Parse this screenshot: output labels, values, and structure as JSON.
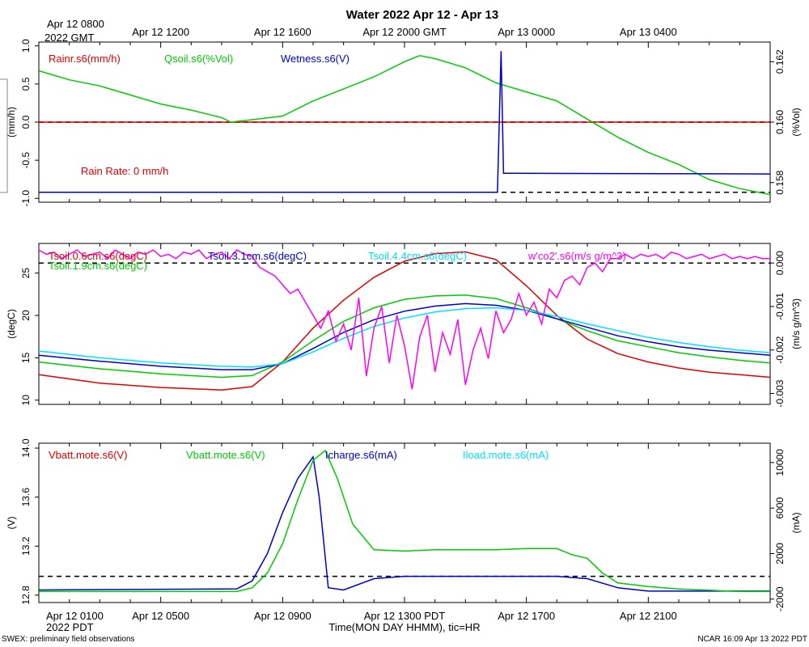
{
  "title": "Water 2022 Apr 12 - Apr 13",
  "top_axis": {
    "start_label": [
      "Apr 12 0800",
      "2022 GMT"
    ],
    "ticks": [
      {
        "label": "Apr 12 1200",
        "hour": 4
      },
      {
        "label": "Apr 12 1600",
        "hour": 8
      },
      {
        "label": "Apr 12 2000 GMT",
        "hour": 12
      },
      {
        "label": "Apr 13 0000",
        "hour": 16
      },
      {
        "label": "Apr 13 0400",
        "hour": 20
      }
    ]
  },
  "bottom_axis": {
    "start_label": [
      "Apr 12 0100",
      "2022 PDT"
    ],
    "ticks": [
      {
        "label": "Apr 12 0500",
        "hour": 4
      },
      {
        "label": "Apr 12 0900",
        "hour": 8
      },
      {
        "label": "Apr 12 1300 PDT",
        "hour": 12
      },
      {
        "label": "Apr 12 1700",
        "hour": 16
      },
      {
        "label": "Apr 12 2100",
        "hour": 20
      }
    ],
    "xlabel": "Time(MON DAY HHMM), tic=HR",
    "hours": 24
  },
  "footer": {
    "left": "SWEX: preliminary field observations",
    "right": "NCAR 16:09 Apr 13 2022 PDT"
  },
  "colors": {
    "red": "#e00000",
    "green": "#00cc00",
    "blue": "#0000cc",
    "cyan": "#00e0ff",
    "magenta": "#ff00ff",
    "black": "#000000"
  },
  "chart_data": [
    {
      "type": "line",
      "panel": "water",
      "left_axis": {
        "label": "(mm/h)",
        "ylim": [
          -1.05,
          1.05
        ],
        "ticks": [
          "1.0",
          "0.5",
          "0.0",
          "-0.5",
          "-1.0"
        ],
        "tick_values": [
          1.0,
          0.5,
          0.0,
          -0.5,
          -1.0
        ]
      },
      "right_axis": {
        "label": "(%Vol)",
        "ylim": [
          0.15735,
          0.16265
        ],
        "ticks": [
          "0.162",
          "0.160",
          "0.158"
        ],
        "tick_values": [
          0.162,
          0.16,
          0.158
        ]
      },
      "legend": [
        "Rainr.s6(mm/h)",
        "Qsoil.s6(%Vol)",
        "Wetness.s6(V)"
      ],
      "annotation": "Rain Rate: 0 mm/h",
      "dashed_lines": [
        {
          "axis": "left",
          "value": 0.0,
          "color": "red"
        },
        {
          "axis": "left",
          "value": 0.0,
          "color": "black"
        },
        {
          "axis": "left",
          "value": -0.92,
          "color": "black"
        }
      ],
      "series": [
        {
          "name": "Rainr.s6(mm/h)",
          "color": "red",
          "axis": "left",
          "x": [
            0,
            24
          ],
          "y": [
            0,
            0
          ]
        },
        {
          "name": "Qsoil.s6(%Vol)",
          "color": "green",
          "axis": "right",
          "x": [
            0,
            1,
            2,
            3,
            4,
            5,
            6,
            6.3,
            7,
            8,
            9,
            10,
            11,
            12,
            12.5,
            13,
            14,
            15,
            16,
            17,
            18,
            19,
            20,
            21,
            22,
            23,
            24
          ],
          "y": [
            0.1617,
            0.1614,
            0.1612,
            0.1609,
            0.1606,
            0.1604,
            0.16015,
            0.16,
            0.16008,
            0.1602,
            0.1607,
            0.1611,
            0.1615,
            0.162,
            0.1622,
            0.1621,
            0.1618,
            0.1613,
            0.161,
            0.1607,
            0.1601,
            0.1595,
            0.159,
            0.1586,
            0.1581,
            0.1578,
            0.1576
          ]
        },
        {
          "name": "Wetness.s6(V)",
          "color": "blue",
          "axis": "left",
          "x": [
            0,
            15.05,
            15.17,
            15.25,
            24
          ],
          "y": [
            -0.92,
            -0.92,
            0.93,
            -0.67,
            -0.68
          ]
        }
      ]
    },
    {
      "type": "line",
      "panel": "temperature",
      "left_axis": {
        "label": "(degC)",
        "ylim": [
          9.5,
          28.5
        ],
        "ticks": [
          "25",
          "20",
          "15",
          "10"
        ],
        "tick_values": [
          25,
          20,
          15,
          10
        ]
      },
      "right_axis": {
        "label": "(m/s g/m^3)",
        "ylim": [
          -0.00325,
          0.00045
        ],
        "ticks": [
          "0.000",
          "-0.001",
          "-0.002",
          "-0.003"
        ],
        "tick_values": [
          0.0,
          -0.001,
          -0.002,
          -0.003
        ]
      },
      "legend": [
        "Tsoil.0.6cm.s6(degC)",
        "Tsoil.1.9cm.s6(degC)",
        "Tsoil.3.1cm.s6(degC)",
        "Tsoil.4.4cm.s6(degC)",
        "w'co2'.s6(m/s g/m^3)"
      ],
      "dashed_lines": [
        {
          "axis": "right",
          "value": 0.0,
          "color": "black"
        }
      ],
      "series": [
        {
          "name": "Tsoil.0.6cm.s6(degC)",
          "color": "red",
          "axis": "left",
          "x": [
            0,
            2,
            4,
            6,
            7,
            8,
            9,
            10,
            11,
            12,
            13,
            14,
            15,
            16,
            17,
            18,
            19,
            20,
            21,
            22,
            23,
            24
          ],
          "y": [
            13,
            12,
            11.5,
            11.2,
            11.6,
            14.5,
            18.5,
            21.8,
            24.5,
            26.4,
            27.3,
            27.5,
            26.6,
            23.5,
            20,
            17.2,
            15.5,
            14.5,
            13.8,
            13.3,
            13,
            12.7
          ]
        },
        {
          "name": "Tsoil.1.9cm.s6(degC)",
          "color": "green",
          "axis": "left",
          "x": [
            0,
            2,
            4,
            6,
            7,
            8,
            9,
            10,
            11,
            12,
            13,
            14,
            15,
            16,
            17,
            18,
            19,
            20,
            21,
            22,
            23,
            24
          ],
          "y": [
            14.5,
            13.7,
            13.1,
            12.7,
            12.9,
            14.5,
            17,
            19.3,
            20.9,
            21.9,
            22.3,
            22.4,
            22,
            20.9,
            19.6,
            18.2,
            17,
            16.3,
            15.6,
            15.1,
            14.7,
            14.4
          ]
        },
        {
          "name": "Tsoil.3.1cm.s6(degC)",
          "color": "blue",
          "axis": "left",
          "x": [
            0,
            2,
            4,
            6,
            7,
            8,
            9,
            10,
            11,
            12,
            13,
            14,
            15,
            16,
            17,
            18,
            19,
            20,
            21,
            22,
            23,
            24
          ],
          "y": [
            15.3,
            14.6,
            14,
            13.6,
            13.6,
            14.3,
            16.1,
            18,
            19.5,
            20.5,
            21.1,
            21.4,
            21.2,
            20.6,
            19.6,
            18.6,
            17.6,
            16.9,
            16.3,
            15.9,
            15.6,
            15.3
          ]
        },
        {
          "name": "Tsoil.4.4cm.s6(degC)",
          "color": "cyan",
          "axis": "left",
          "x": [
            0,
            2,
            4,
            6,
            7,
            8,
            9,
            10,
            11,
            12,
            13,
            14,
            15,
            16,
            17,
            18,
            19,
            20,
            21,
            22,
            23,
            24
          ],
          "y": [
            15.8,
            15,
            14.4,
            14,
            13.9,
            14.3,
            15.7,
            17.3,
            18.7,
            19.7,
            20.4,
            20.8,
            20.9,
            20.6,
            19.9,
            19,
            18.2,
            17.4,
            16.8,
            16.3,
            15.9,
            15.6
          ]
        },
        {
          "name": "w'co2'.s6(m/s g/m^3)",
          "color": "magenta",
          "axis": "right",
          "x": [
            0,
            0.25,
            0.5,
            0.75,
            1,
            1.25,
            1.5,
            1.75,
            2,
            2.25,
            2.5,
            2.75,
            3,
            3.25,
            3.5,
            3.75,
            4,
            4.25,
            4.5,
            4.75,
            5,
            5.25,
            5.5,
            5.75,
            6,
            6.25,
            6.5,
            6.75,
            7,
            7.25,
            7.5,
            7.75,
            8,
            8.25,
            8.5,
            8.75,
            9,
            9.25,
            9.5,
            9.75,
            10,
            10.25,
            10.5,
            10.75,
            11,
            11.25,
            11.5,
            11.75,
            12,
            12.25,
            12.5,
            12.75,
            13,
            13.25,
            13.5,
            13.75,
            14,
            14.25,
            14.5,
            14.75,
            15,
            15.25,
            15.5,
            15.75,
            16,
            16.25,
            16.5,
            16.75,
            17,
            17.25,
            17.5,
            17.75,
            18,
            18.25,
            18.5,
            18.75,
            19,
            19.25,
            19.5,
            19.75,
            20,
            20.25,
            20.5,
            20.75,
            21,
            21.25,
            21.5,
            21.75,
            22,
            22.25,
            22.5,
            22.75,
            23,
            23.25,
            23.5,
            23.75,
            24
          ],
          "y": [
            0.0003,
            0.0002,
            0.00025,
            0.0001,
            0.0002,
            0.0003,
            0.00015,
            0.0002,
            0.00025,
            0.0001,
            0.0003,
            0.0002,
            0.0001,
            0.00025,
            0.0002,
            0.0003,
            0.00015,
            0.0002,
            0.0001,
            0.00025,
            0.0002,
            0.0003,
            0.0001,
            0.0002,
            0.00025,
            0.0001,
            0.0003,
            0.0002,
            0.00015,
            -0.0001,
            -0.0002,
            -0.0003,
            -0.0005,
            -0.0007,
            -0.0006,
            -0.0009,
            -0.0012,
            -0.0015,
            -0.0011,
            -0.0018,
            -0.0014,
            -0.002,
            -0.0008,
            -0.0026,
            -0.0015,
            -0.001,
            -0.0023,
            -0.0012,
            -0.0019,
            -0.0029,
            -0.0017,
            -0.0012,
            -0.0025,
            -0.0016,
            -0.0021,
            -0.0013,
            -0.0028,
            -0.002,
            -0.0015,
            -0.0022,
            -0.0011,
            -0.0016,
            -0.0013,
            -0.0007,
            -0.0012,
            -0.0009,
            -0.0014,
            -0.0006,
            -0.0008,
            -0.0004,
            -0.0003,
            -0.0005,
            -0.0001,
            0.0,
            -0.0002,
            0.0001,
            0.0001,
            0.0002,
            0.0001,
            0.0002,
            0.00015,
            0.0002,
            0.0001,
            0.00025,
            0.0002,
            0.0001,
            0.00015,
            0.0002,
            0.0001,
            0.00015,
            0.0002,
            0.0001,
            0.00015,
            0.0001,
            0.00015,
            0.0001,
            0.0001
          ]
        }
      ]
    },
    {
      "type": "line",
      "panel": "power",
      "left_axis": {
        "label": "(V)",
        "ylim": [
          12.74,
          14.04
        ],
        "ticks": [
          "14.0",
          "13.6",
          "13.2",
          "12.8"
        ],
        "tick_values": [
          14.0,
          13.6,
          13.2,
          12.8
        ]
      },
      "right_axis": {
        "label": "(mA)",
        "ylim": [
          -2300,
          11700
        ],
        "ticks": [
          "10000",
          "6000",
          "2000",
          "-2000"
        ],
        "tick_values": [
          10000,
          6000,
          2000,
          -2000
        ]
      },
      "legend": [
        "Vbatt.mote.s6(V)",
        "Vbatt.mote.s6(V)",
        "Icharge.s6(mA)",
        "Iload.mote.s6(mA)"
      ],
      "dashed_lines": [
        {
          "axis": "right",
          "value": 0,
          "color": "cyan"
        },
        {
          "axis": "right",
          "value": 0,
          "color": "black"
        }
      ],
      "series": [
        {
          "name": "Icharge.s6(mA)",
          "color": "blue",
          "axis": "right",
          "x": [
            0,
            6.5,
            7,
            7.5,
            8,
            8.5,
            9,
            9.2,
            9.5,
            10,
            11,
            12,
            13,
            14,
            15,
            16,
            17,
            18,
            19,
            20,
            24
          ],
          "y": [
            -1200,
            -1100,
            -400,
            2000,
            5600,
            8600,
            10500,
            7000,
            -1000,
            -1200,
            -200,
            0,
            0,
            0,
            0,
            0,
            0,
            -200,
            -1000,
            -1300,
            -1300
          ]
        },
        {
          "name": "Vbatt.mote.s6(V)",
          "color": "green",
          "axis": "left",
          "x": [
            0,
            6.5,
            7,
            7.5,
            8,
            8.5,
            9,
            9.4,
            9.8,
            10.3,
            11,
            12,
            13,
            14,
            15,
            16,
            17,
            17.5,
            18,
            18.5,
            19,
            20,
            21,
            22,
            23,
            24
          ],
          "y": [
            12.83,
            12.83,
            12.86,
            12.98,
            13.22,
            13.58,
            13.9,
            13.98,
            13.75,
            13.38,
            13.17,
            13.16,
            13.17,
            13.17,
            13.17,
            13.18,
            13.18,
            13.13,
            13.1,
            12.98,
            12.9,
            12.87,
            12.85,
            12.84,
            12.83,
            12.83
          ]
        }
      ]
    }
  ]
}
